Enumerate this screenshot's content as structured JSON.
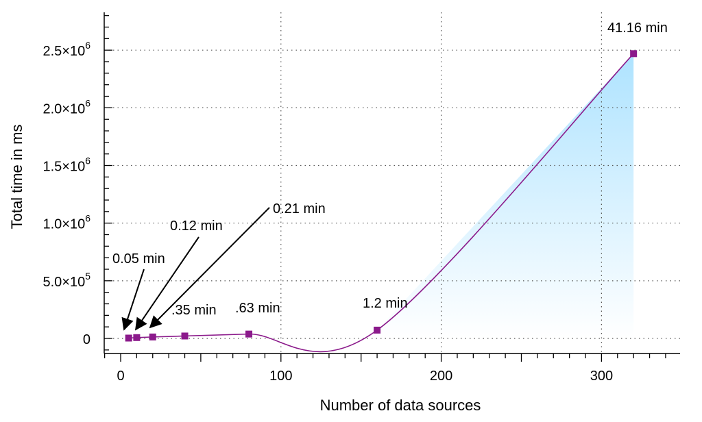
{
  "chart_data": {
    "type": "line",
    "title": "",
    "xlabel": "Number of data sources",
    "ylabel": "Total time in ms",
    "xlim": [
      0,
      350
    ],
    "ylim": [
      -130000,
      2800000
    ],
    "grid": true,
    "x_ticks": [
      0,
      100,
      200,
      300
    ],
    "x_tick_labels": [
      "0",
      "100",
      "200",
      "300"
    ],
    "y_ticks": [
      0,
      500000,
      1000000,
      1500000,
      2000000,
      2500000
    ],
    "y_tick_labels": [
      {
        "mantissa": "0",
        "exponent": ""
      },
      {
        "mantissa": "5.0×10",
        "exponent": "5"
      },
      {
        "mantissa": "1.0×10",
        "exponent": "6"
      },
      {
        "mantissa": "1.5×10",
        "exponent": "6"
      },
      {
        "mantissa": "2.0×10",
        "exponent": "6"
      },
      {
        "mantissa": "2.5×10",
        "exponent": "6"
      }
    ],
    "series": [
      {
        "x": [
          5,
          10,
          20,
          40,
          80,
          160,
          320
        ],
        "y": [
          3000,
          7200,
          12600,
          21000,
          37800,
          72000,
          2469600
        ]
      }
    ],
    "annotations": [
      {
        "text": "0.05 min",
        "point_index": 0,
        "arrow": true
      },
      {
        "text": "0.12 min",
        "point_index": 1,
        "arrow": true
      },
      {
        "text": "0.21 min",
        "point_index": 2,
        "arrow": true
      },
      {
        "text": ".35 min",
        "point_index": 3,
        "arrow": false
      },
      {
        "text": ".63 min",
        "point_index": 4,
        "arrow": false
      },
      {
        "text": "1.2 min",
        "point_index": 5,
        "arrow": false
      },
      {
        "text": "41.16 min",
        "point_index": 6,
        "arrow": false
      }
    ],
    "colors": {
      "line": "#8b1a8b",
      "marker": "#8b1a8b",
      "fill_top": "#aee3ff",
      "fill_bottom": "#ffffff",
      "grid": "#555555"
    }
  }
}
